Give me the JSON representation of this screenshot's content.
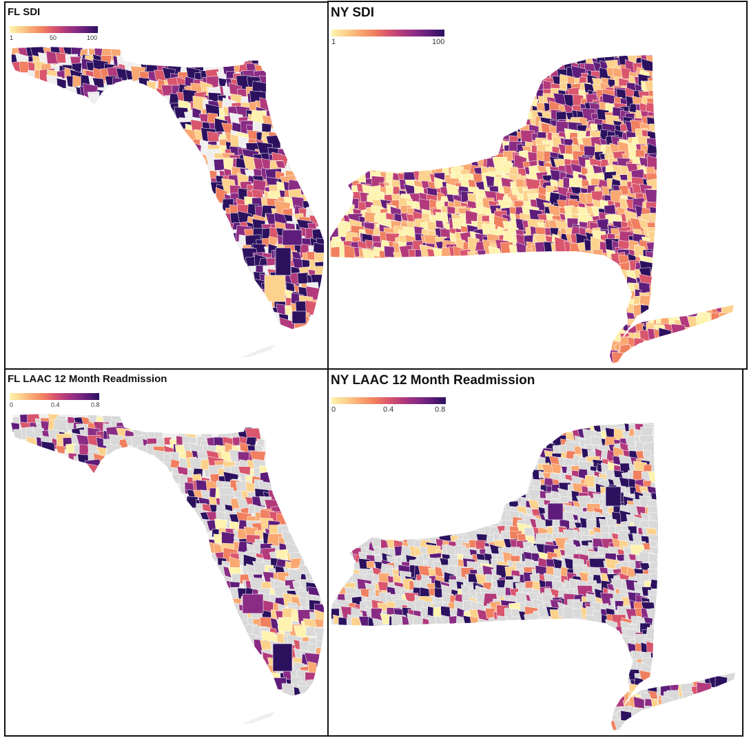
{
  "panels": [
    {
      "id": "fl_sdi",
      "title": "FL SDI",
      "legend": {
        "ticks": [
          "1",
          "50",
          "100"
        ],
        "range": [
          1,
          100
        ],
        "scale": "magma"
      }
    },
    {
      "id": "ny_sdi",
      "title": "NY SDI",
      "legend": {
        "ticks": [
          "1",
          "100"
        ],
        "range": [
          1,
          100
        ],
        "scale": "magma"
      }
    },
    {
      "id": "fl_laac",
      "title": "FL LAAC 12 Month Readmission",
      "legend": {
        "ticks": [
          "0",
          "0.4",
          "0.8"
        ],
        "range": [
          0,
          0.8
        ],
        "scale": "magma"
      }
    },
    {
      "id": "ny_laac",
      "title": "NY LAAC 12 Month Readmission",
      "legend": {
        "ticks": [
          "0",
          "0.4",
          "0.8"
        ],
        "range": [
          0,
          0.8
        ],
        "scale": "magma"
      }
    }
  ],
  "colors": {
    "ramp": [
      "#fdf3ae",
      "#fcd28c",
      "#f9a872",
      "#f0805f",
      "#d9566d",
      "#b23a7c",
      "#8a2c84",
      "#5e1d7a",
      "#2c115f"
    ],
    "missing": "#d9d9d9",
    "no_data": "#efefef"
  }
}
